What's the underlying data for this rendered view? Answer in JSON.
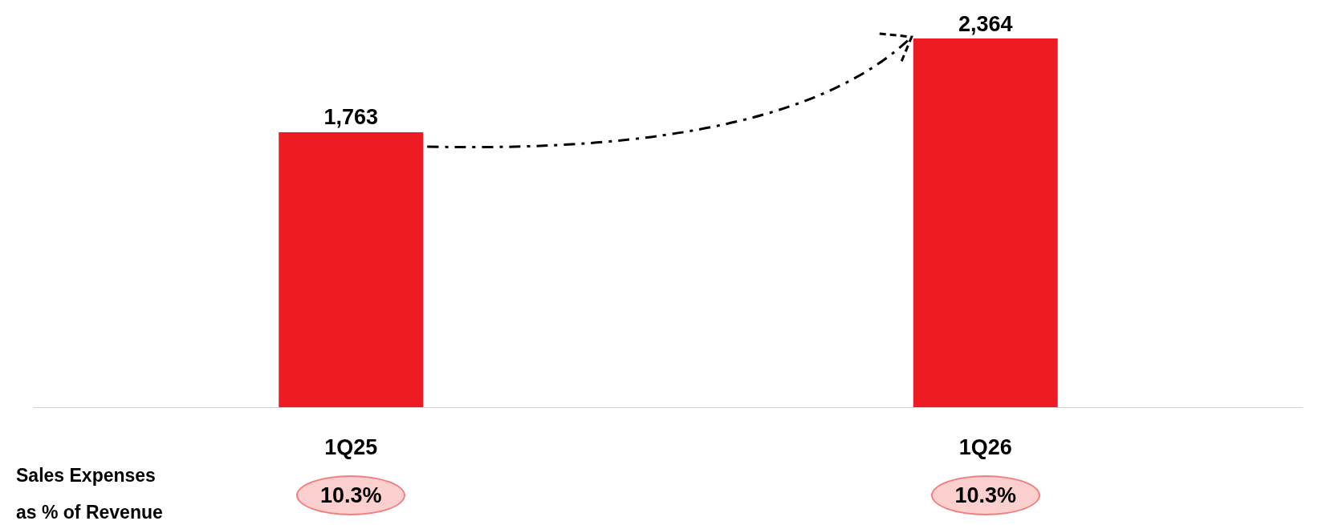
{
  "chart_data": {
    "type": "bar",
    "categories": [
      "1Q25",
      "1Q26"
    ],
    "values": [
      1763,
      2364
    ],
    "value_labels": [
      "1,763",
      "2,364"
    ],
    "color": "#ed1c24",
    "annotations": [
      "Sales Expenses\nas % of Revenue",
      "10.3%",
      "10.3%"
    ]
  }
}
